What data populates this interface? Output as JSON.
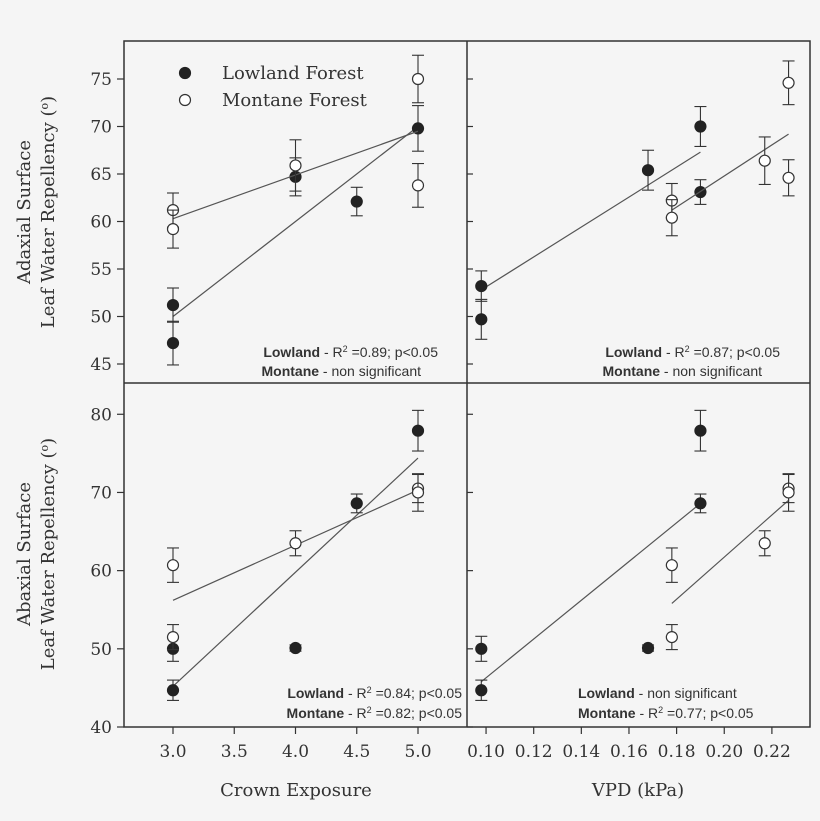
{
  "figure": {
    "x_label_left": "Crown Exposure",
    "x_label_right": "VPD (kPa)",
    "y_label_top_line1": "Adaxial Surface",
    "y_label_top_line2": "Leaf Water Repellency (",
    "y_label_bottom_line1": "Abaxial Surface",
    "y_label_bottom_line2": "Leaf Water Repellency (",
    "y_label_degree_sup": "o",
    "y_label_close": ")",
    "legend": {
      "lowland": "Lowland Forest",
      "montane": "Montane Forest"
    },
    "colors": {
      "ink": "#333333",
      "background": "#f5f5f5"
    }
  },
  "stats": {
    "top_left": {
      "line1_bold": "Lowland",
      "line1_a": " - R",
      "line1_sup": "2",
      "line1_b": " =0.89; p<0.05",
      "line2_bold": "Montane",
      "line2_a": " - non significant",
      "line2_sup": "",
      "line2_b": ""
    },
    "top_right": {
      "line1_bold": "Lowland",
      "line1_a": " - R",
      "line1_sup": "2",
      "line1_b": " =0.87; p<0.05",
      "line2_bold": "Montane",
      "line2_a": " - non significant",
      "line2_sup": "",
      "line2_b": ""
    },
    "bottom_left": {
      "line1_bold": "Lowland",
      "line1_a": " - R",
      "line1_sup": "2",
      "line1_b": " =0.84; p<0.05",
      "line2_bold": "Montane",
      "line2_a": " - R",
      "line2_sup": "2",
      "line2_b": " =0.82; p<0.05"
    },
    "bottom_right": {
      "line1_bold": "Lowland",
      "line1_a": " - non significant",
      "line1_sup": "",
      "line1_b": "",
      "line2_bold": "Montane",
      "line2_a": " - R",
      "line2_sup": "2",
      "line2_b": " =0.77; p<0.05"
    }
  },
  "chart_data": [
    {
      "id": "top_left",
      "type": "scatter",
      "xlabel": "Crown Exposure",
      "ylabel": "Adaxial Surface Leaf Water Repellency (o)",
      "xlim": [
        2.6,
        5.4
      ],
      "ylim": [
        43,
        79
      ],
      "xticks": [],
      "xtick_labels": [],
      "yticks": [
        45,
        50,
        55,
        60,
        65,
        70,
        75
      ],
      "ytick_labels": [
        "45",
        "50",
        "55",
        "60",
        "65",
        "70",
        "75"
      ],
      "series": [
        {
          "name": "Lowland Forest",
          "filled": true,
          "points": [
            [
              3.0,
              51.2,
              1.8
            ],
            [
              3.0,
              47.2,
              2.3
            ],
            [
              4.0,
              64.7,
              2.0
            ],
            [
              4.5,
              62.1,
              1.5
            ],
            [
              5.0,
              69.8,
              2.4
            ]
          ],
          "fit": [
            [
              3.0,
              50.0
            ],
            [
              5.0,
              70.0
            ]
          ]
        },
        {
          "name": "Montane Forest",
          "filled": false,
          "points": [
            [
              3.0,
              61.2,
              1.8
            ],
            [
              3.0,
              59.2,
              2.0
            ],
            [
              4.0,
              65.9,
              2.7
            ],
            [
              5.0,
              75.0,
              2.5
            ],
            [
              5.0,
              63.8,
              2.3
            ]
          ],
          "fit": [
            [
              3.0,
              60.3
            ],
            [
              5.0,
              69.5
            ]
          ]
        }
      ]
    },
    {
      "id": "top_right",
      "type": "scatter",
      "xlabel": "VPD (kPa)",
      "ylabel": "Adaxial Surface Leaf Water Repellency (o)",
      "xlim": [
        0.092,
        0.236
      ],
      "ylim": [
        43,
        79
      ],
      "xticks": [],
      "xtick_labels": [],
      "yticks": [
        45,
        50,
        55,
        60,
        65,
        70,
        75
      ],
      "ytick_labels": [],
      "series": [
        {
          "name": "Lowland Forest",
          "filled": true,
          "points": [
            [
              0.098,
              53.2,
              1.6
            ],
            [
              0.098,
              49.7,
              2.1
            ],
            [
              0.168,
              65.4,
              2.1
            ],
            [
              0.19,
              70.0,
              2.1
            ],
            [
              0.19,
              63.1,
              1.3
            ]
          ],
          "fit": [
            [
              0.098,
              52.8
            ],
            [
              0.19,
              67.3
            ]
          ]
        },
        {
          "name": "Montane Forest",
          "filled": false,
          "points": [
            [
              0.178,
              62.2,
              1.8
            ],
            [
              0.178,
              60.4,
              1.9
            ],
            [
              0.217,
              66.4,
              2.5
            ],
            [
              0.227,
              74.6,
              2.3
            ],
            [
              0.227,
              64.6,
              1.9
            ]
          ],
          "fit": [
            [
              0.178,
              61.2
            ],
            [
              0.227,
              69.2
            ]
          ]
        }
      ]
    },
    {
      "id": "bottom_left",
      "type": "scatter",
      "xlabel": "Crown Exposure",
      "ylabel": "Abaxial Surface Leaf Water Repellency (o)",
      "xlim": [
        2.6,
        5.4
      ],
      "ylim": [
        40,
        84
      ],
      "xticks": [
        3.0,
        3.5,
        4.0,
        4.5,
        5.0
      ],
      "xtick_labels": [
        "3.0",
        "3.5",
        "4.0",
        "4.5",
        "5.0"
      ],
      "yticks": [
        40,
        50,
        60,
        70,
        80
      ],
      "ytick_labels": [
        "40",
        "50",
        "60",
        "70",
        "80"
      ],
      "series": [
        {
          "name": "Lowland Forest",
          "filled": true,
          "points": [
            [
              3.0,
              50.0,
              1.6
            ],
            [
              3.0,
              44.7,
              1.3
            ],
            [
              4.0,
              50.1,
              0.4
            ],
            [
              4.5,
              68.6,
              1.2
            ],
            [
              5.0,
              77.9,
              2.6
            ]
          ],
          "fit": [
            [
              3.0,
              45.2
            ],
            [
              5.0,
              74.4
            ]
          ]
        },
        {
          "name": "Montane Forest",
          "filled": false,
          "points": [
            [
              3.0,
              60.7,
              2.2
            ],
            [
              3.0,
              51.5,
              1.6
            ],
            [
              4.0,
              63.5,
              1.6
            ],
            [
              5.0,
              70.5,
              1.8
            ],
            [
              5.0,
              70.0,
              2.4
            ]
          ],
          "fit": [
            [
              3.0,
              56.2
            ],
            [
              5.0,
              70.3
            ]
          ]
        }
      ]
    },
    {
      "id": "bottom_right",
      "type": "scatter",
      "xlabel": "VPD (kPa)",
      "ylabel": "Abaxial Surface Leaf Water Repellency (o)",
      "xlim": [
        0.092,
        0.236
      ],
      "ylim": [
        40,
        84
      ],
      "xticks": [
        0.1,
        0.12,
        0.14,
        0.16,
        0.18,
        0.2,
        0.22
      ],
      "xtick_labels": [
        "0.10",
        "0.12",
        "0.14",
        "0.16",
        "0.18",
        "0.20",
        "0.22"
      ],
      "yticks": [
        40,
        50,
        60,
        70,
        80
      ],
      "ytick_labels": [],
      "series": [
        {
          "name": "Lowland Forest",
          "filled": true,
          "points": [
            [
              0.098,
              50.0,
              1.6
            ],
            [
              0.098,
              44.7,
              1.3
            ],
            [
              0.168,
              50.1,
              0.4
            ],
            [
              0.19,
              68.6,
              1.2
            ],
            [
              0.19,
              77.9,
              2.6
            ]
          ],
          "fit": [
            [
              0.098,
              45.8
            ],
            [
              0.19,
              68.6
            ]
          ]
        },
        {
          "name": "Montane Forest",
          "filled": false,
          "points": [
            [
              0.178,
              60.7,
              2.2
            ],
            [
              0.178,
              51.5,
              1.6
            ],
            [
              0.217,
              63.5,
              1.6
            ],
            [
              0.227,
              70.5,
              1.8
            ],
            [
              0.227,
              70.0,
              2.4
            ]
          ],
          "fit": [
            [
              0.178,
              55.8
            ],
            [
              0.227,
              69.0
            ]
          ]
        }
      ]
    }
  ]
}
